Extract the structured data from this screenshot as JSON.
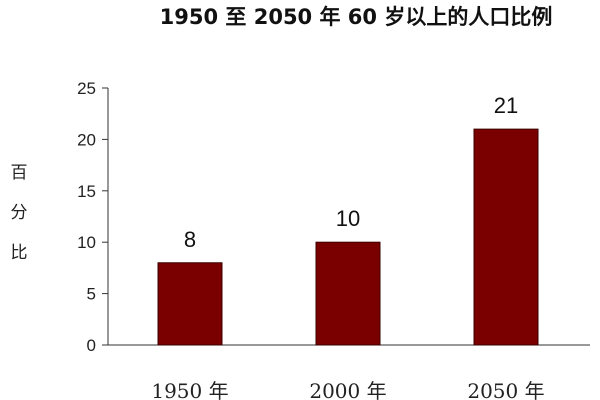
{
  "colors": {
    "bar": "#7a0000",
    "bar_edge": "#3a0000",
    "axis": "#333333"
  },
  "chart_data": {
    "type": "bar",
    "title": "1950 至 2050 年 60 岁以上的人口比例",
    "ylabel": "百分比",
    "xlabel": "",
    "categories": [
      "1950 年",
      "2000 年",
      "2050 年"
    ],
    "values": [
      8,
      10,
      21
    ],
    "data_labels": [
      "8",
      "10",
      "21"
    ],
    "ylim": [
      0,
      25
    ],
    "yticks": [
      0,
      5,
      10,
      15,
      20,
      25
    ],
    "ytick_labels": [
      "0",
      "5",
      "10",
      "15",
      "20",
      "25"
    ],
    "grid": false,
    "legend": "none"
  }
}
